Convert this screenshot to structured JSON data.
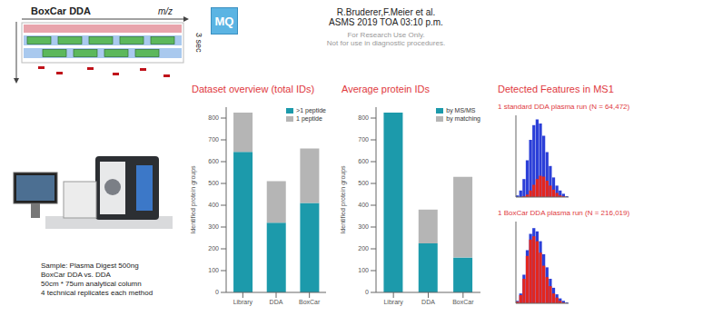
{
  "slide": {
    "diagram": {
      "title": "BoxCar DDA",
      "x_label": "m/z",
      "y_label": "3 sec"
    },
    "logo": "MQ",
    "authors": "R.Bruderer,F.Meier et al.",
    "session": "ASMS 2019  TOA 03:10 p.m.",
    "disclaimer": [
      "For Research Use Only.",
      "Not for use in diagnostic procedures."
    ],
    "sample_notes": [
      "Sample: Plasma Digest 500ng",
      "BoxCar DDA vs. DDA",
      "50cm * 75um analytical column",
      "4 technical replicates each method"
    ],
    "section_title": "Detected Features in MS1"
  },
  "chart_data": [
    {
      "type": "bar",
      "title": "Dataset overview (total IDs)",
      "ylabel": "Identified protein groups",
      "categories": [
        "Library",
        "DDA",
        "BoxCar"
      ],
      "series": [
        {
          "name": ">1 peptide",
          "color": "#1c9aab",
          "values": [
            645,
            320,
            410
          ]
        },
        {
          "name": "1 peptide",
          "color": "#b5b5b5",
          "values": [
            180,
            190,
            250
          ]
        }
      ],
      "stacked": true,
      "ylim": [
        0,
        850
      ],
      "yticks": [
        0,
        100,
        200,
        300,
        400,
        500,
        600,
        700,
        800
      ],
      "legend": "upper right",
      "grid": false
    },
    {
      "type": "bar",
      "title": "Average protein IDs",
      "ylabel": "Identified protein groups",
      "categories": [
        "Library",
        "DDA",
        "BoxCar"
      ],
      "series": [
        {
          "name": "by MS/MS",
          "color": "#1c9aab",
          "values": [
            825,
            225,
            160
          ]
        },
        {
          "name": "by matching",
          "color": "#b5b5b5",
          "values": [
            0,
            155,
            370
          ]
        }
      ],
      "stacked": true,
      "ylim": [
        0,
        850
      ],
      "yticks": [
        0,
        100,
        200,
        300,
        400,
        500,
        600,
        700,
        800
      ],
      "legend": "upper right",
      "grid": false
    },
    {
      "type": "histogram",
      "title": "1 standard DDA plasma run (N = 64,472)",
      "bins": [
        0,
        1,
        2,
        3,
        4,
        5,
        6,
        7,
        8,
        9,
        10,
        11,
        12,
        13,
        14,
        15,
        16
      ],
      "series": [
        {
          "color": "#2b3fd8",
          "values": [
            2,
            8,
            22,
            45,
            70,
            88,
            95,
            90,
            75,
            55,
            38,
            24,
            14,
            8,
            4,
            1
          ]
        },
        {
          "color": "#e3261f",
          "values": [
            0,
            0,
            1,
            3,
            8,
            15,
            22,
            26,
            25,
            20,
            14,
            9,
            5,
            2,
            1,
            0
          ]
        }
      ],
      "xlim": [
        0,
        16
      ],
      "ylim": [
        0,
        100
      ],
      "tick_labels": false
    },
    {
      "type": "histogram",
      "title": "1 BoxCar DDA plasma run (N = 216,019)",
      "bins": [
        0,
        1,
        2,
        3,
        4,
        5,
        6,
        7,
        8,
        9,
        10,
        11,
        12,
        13,
        14,
        15,
        16
      ],
      "series": [
        {
          "color": "#2b3fd8",
          "values": [
            3,
            12,
            35,
            65,
            85,
            92,
            88,
            76,
            60,
            44,
            30,
            19,
            11,
            6,
            3,
            1
          ]
        },
        {
          "color": "#e3261f",
          "values": [
            2,
            10,
            30,
            58,
            78,
            82,
            76,
            62,
            46,
            32,
            21,
            12,
            7,
            3,
            1,
            0
          ]
        }
      ],
      "xlim": [
        0,
        16
      ],
      "ylim": [
        0,
        100
      ],
      "tick_labels": false
    }
  ]
}
